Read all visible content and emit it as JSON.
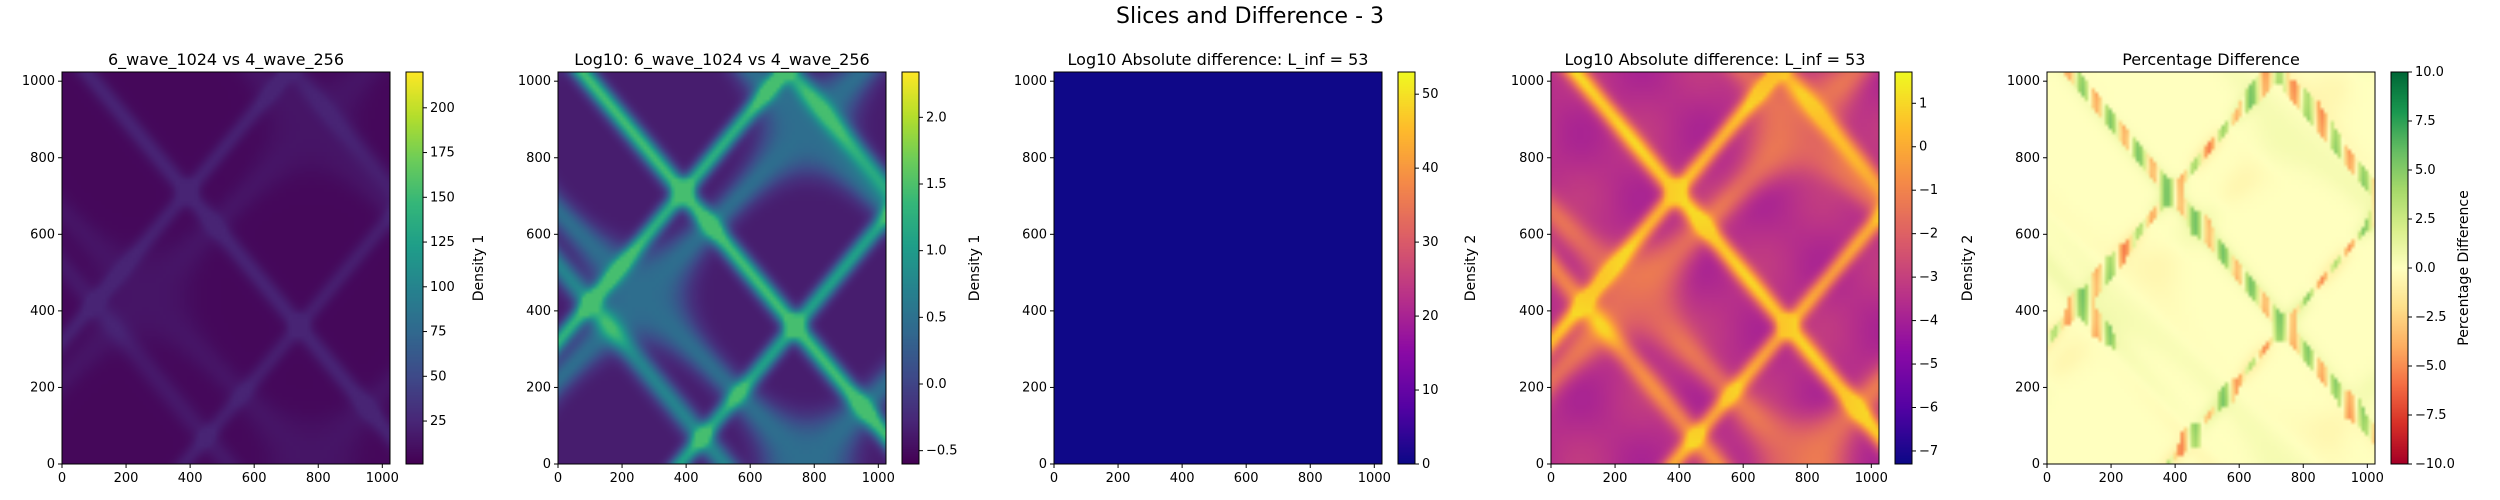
{
  "figure": {
    "suptitle": "Slices and Difference - 3"
  },
  "chart_data": [
    {
      "type": "heatmap",
      "title": "6_wave_1024 vs 4_wave_256",
      "xlim": [
        0,
        1024
      ],
      "ylim": [
        0,
        1024
      ],
      "xticks": [
        "0",
        "200",
        "400",
        "600",
        "800",
        "1000"
      ],
      "yticks": [
        "0",
        "200",
        "400",
        "600",
        "800",
        "1000"
      ],
      "colormap": "viridis",
      "colorbar": {
        "label": "Density 1",
        "range": [
          1,
          220
        ],
        "ticks": [
          "25",
          "50",
          "75",
          "100",
          "125",
          "150",
          "175",
          "200"
        ],
        "tick_values": [
          25,
          50,
          75,
          100,
          125,
          150,
          175,
          200
        ]
      },
      "field": "linear_density"
    },
    {
      "type": "heatmap",
      "title": "Log10: 6_wave_1024 vs 4_wave_256",
      "xlim": [
        0,
        1024
      ],
      "ylim": [
        0,
        1024
      ],
      "xticks": [
        "0",
        "200",
        "400",
        "600",
        "800",
        "1000"
      ],
      "yticks": [
        "0",
        "200",
        "400",
        "600",
        "800",
        "1000"
      ],
      "colormap": "viridis",
      "colorbar": {
        "label": "Density 1",
        "range": [
          -0.6,
          2.34
        ],
        "ticks": [
          "−0.5",
          "0.0",
          "0.5",
          "1.0",
          "1.5",
          "2.0"
        ],
        "tick_values": [
          -0.5,
          0.0,
          0.5,
          1.0,
          1.5,
          2.0
        ]
      },
      "field": "log_density"
    },
    {
      "type": "heatmap",
      "title": "Log10 Absolute difference: L_inf = 53",
      "xlim": [
        0,
        1024
      ],
      "ylim": [
        0,
        1024
      ],
      "xticks": [
        "0",
        "200",
        "400",
        "600",
        "800",
        "1000"
      ],
      "yticks": [
        "0",
        "200",
        "400",
        "600",
        "800",
        "1000"
      ],
      "colormap": "plasma",
      "colorbar": {
        "label": "Density 2",
        "range": [
          0,
          53
        ],
        "ticks": [
          "0",
          "10",
          "20",
          "30",
          "40",
          "50"
        ],
        "tick_values": [
          0,
          10,
          20,
          30,
          40,
          50
        ]
      },
      "field": "abs_difference"
    },
    {
      "type": "heatmap",
      "title": "Log10 Absolute difference: L_inf = 53",
      "xlim": [
        0,
        1024
      ],
      "ylim": [
        0,
        1024
      ],
      "xticks": [
        "0",
        "200",
        "400",
        "600",
        "800",
        "1000"
      ],
      "yticks": [
        "0",
        "200",
        "400",
        "600",
        "800",
        "1000"
      ],
      "colormap": "plasma",
      "colorbar": {
        "label": "Density 2",
        "range": [
          -7.3,
          1.72
        ],
        "ticks": [
          "−7",
          "−6",
          "−5",
          "−4",
          "−3",
          "−2",
          "−1",
          "0",
          "1"
        ],
        "tick_values": [
          -7,
          -6,
          -5,
          -4,
          -3,
          -2,
          -1,
          0,
          1
        ]
      },
      "field": "log_abs_difference"
    },
    {
      "type": "heatmap",
      "title": "Percentage Difference",
      "xlim": [
        0,
        1024
      ],
      "ylim": [
        0,
        1024
      ],
      "xticks": [
        "0",
        "200",
        "400",
        "600",
        "800",
        "1000"
      ],
      "yticks": [
        "0",
        "200",
        "400",
        "600",
        "800",
        "1000"
      ],
      "colormap": "RdYlGn",
      "colorbar": {
        "label": "Percentage Difference",
        "range": [
          -10,
          10
        ],
        "ticks": [
          "−10.0",
          "−7.5",
          "−5.0",
          "−2.5",
          "0.0",
          "2.5",
          "5.0",
          "7.5",
          "10.0"
        ],
        "tick_values": [
          -10,
          -7.5,
          -5,
          -2.5,
          0,
          2.5,
          5,
          7.5,
          10
        ]
      },
      "field": "percent_difference"
    }
  ]
}
